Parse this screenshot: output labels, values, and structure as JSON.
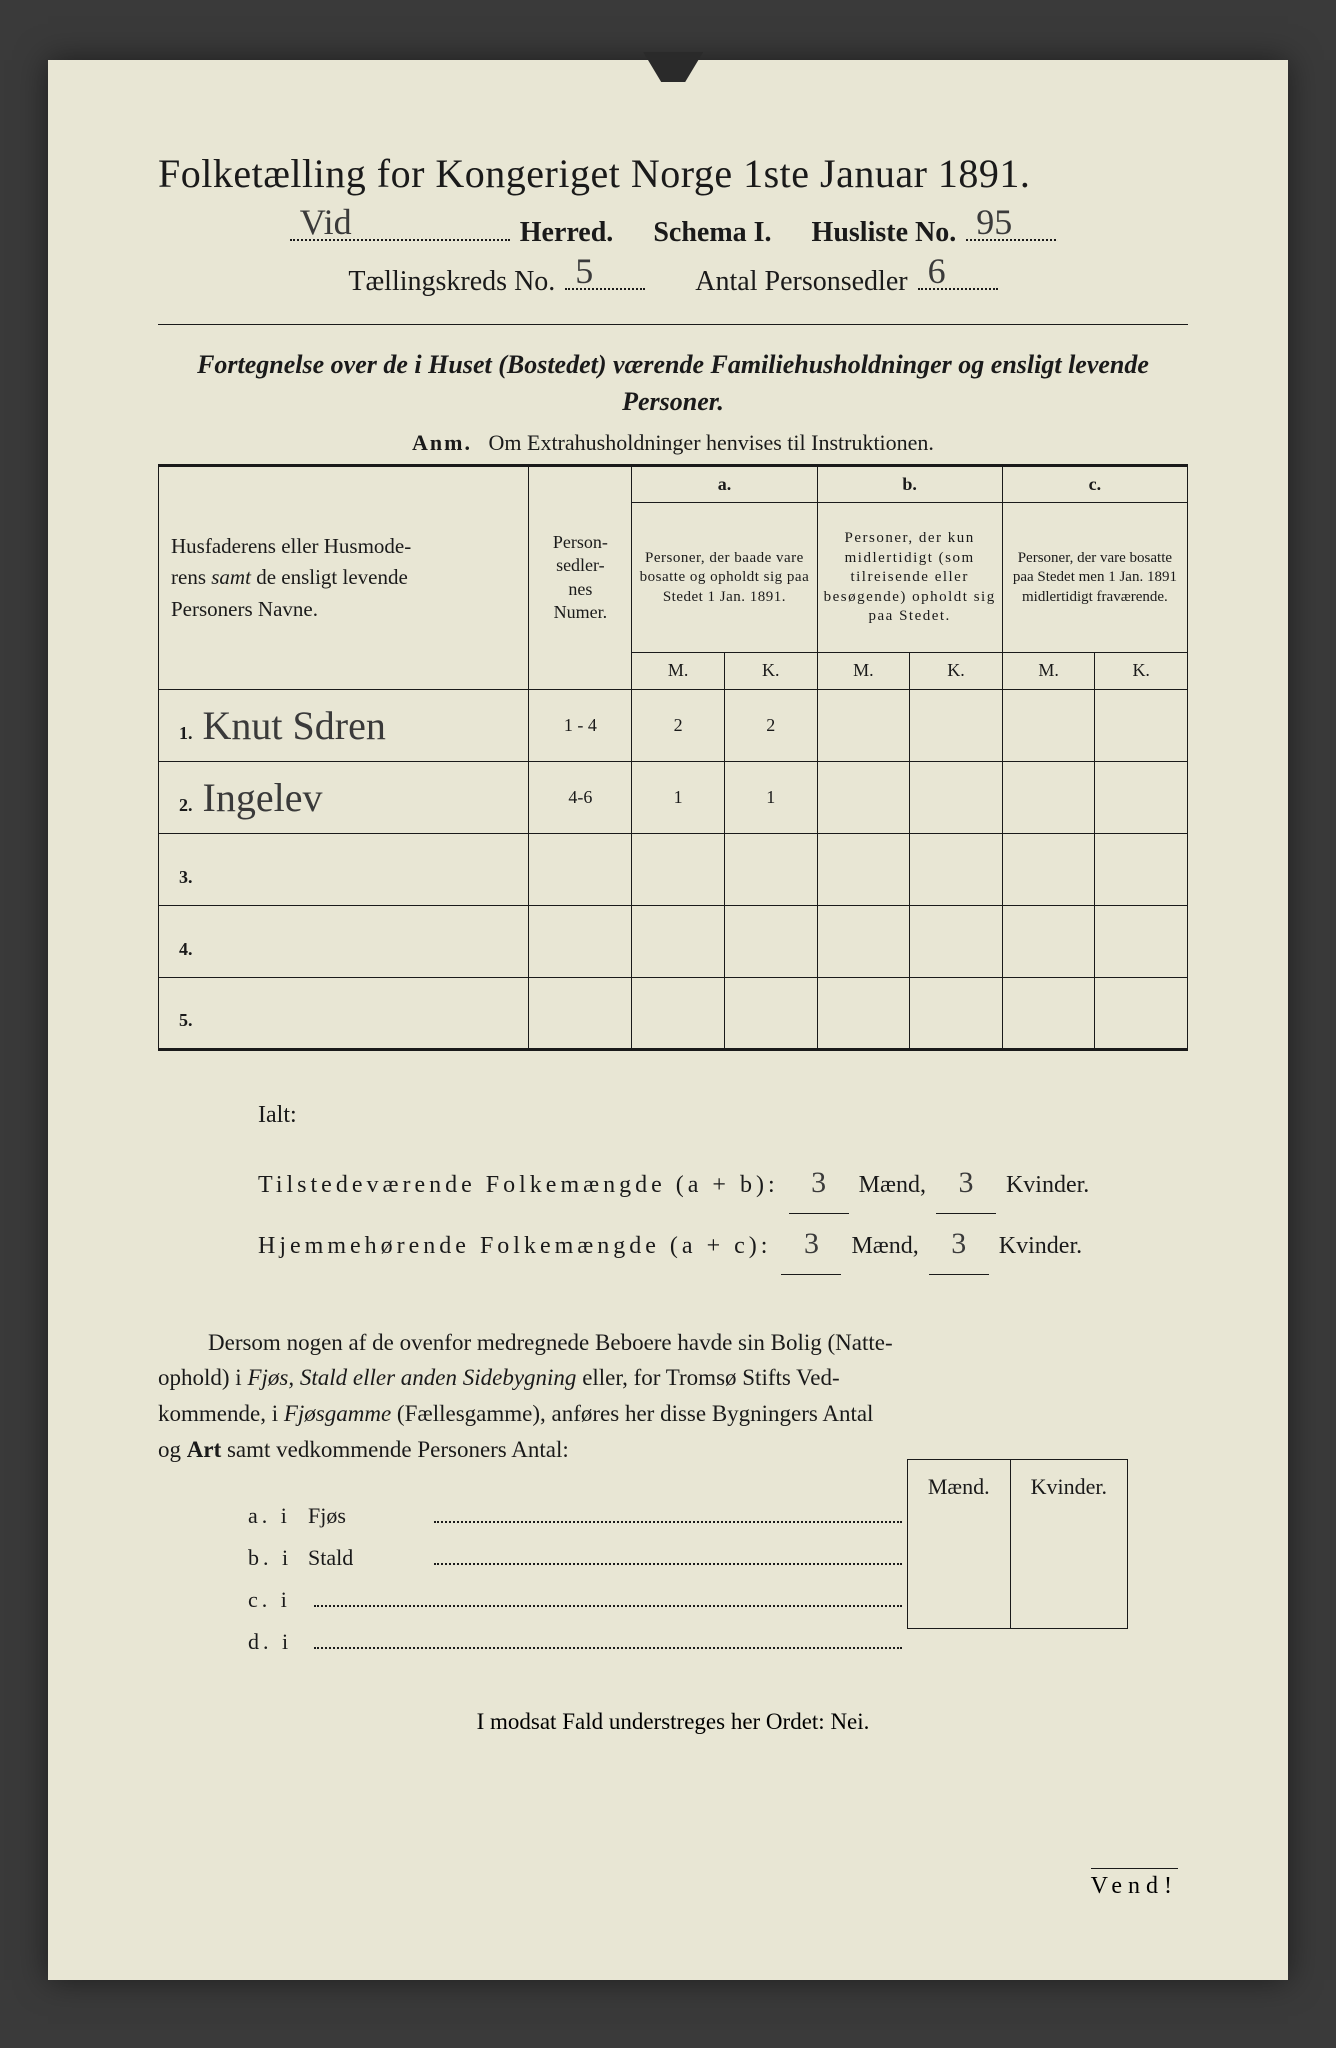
{
  "title": "Folketælling for Kongeriget Norge 1ste Januar 1891.",
  "header": {
    "herred_hand": "Vid",
    "herred_label": "Herred.",
    "schema_label": "Schema I.",
    "husliste_label": "Husliste No.",
    "husliste_hand": "95",
    "kreds_label": "Tællingskreds No.",
    "kreds_hand": "5",
    "antal_label": "Antal Personsedler",
    "antal_hand": "6"
  },
  "subtitle": "Fortegnelse over de i Huset (Bostedet) værende Familiehusholdninger og ensligt levende Personer.",
  "anm_label": "Anm.",
  "anm_text": "Om Extrahusholdninger henvises til Instruktionen.",
  "table": {
    "col1": "Husfaderens eller Husmoderens samt de ensligt levende Personers Navne.",
    "col2": "Person-\nsedler-\nnes\nNumer.",
    "a_label": "a.",
    "a_text": "Personer, der baade vare bosatte og opholdt sig paa Stedet 1 Jan. 1891.",
    "b_label": "b.",
    "b_text": "Personer, der kun midlertidigt (som tilreisende eller besøgende) opholdt sig paa Stedet.",
    "c_label": "c.",
    "c_text": "Personer, der vare bosatte paa Stedet men 1 Jan. 1891 midlertidigt fraværende.",
    "m": "M.",
    "k": "K.",
    "rows": [
      {
        "n": "1.",
        "name": "Knut Sdren",
        "num": "1 - 4",
        "am": "2",
        "ak": "2",
        "bm": "",
        "bk": "",
        "cm": "",
        "ck": ""
      },
      {
        "n": "2.",
        "name": "Ingelev",
        "num": "4-6",
        "am": "1",
        "ak": "1",
        "bm": "",
        "bk": "",
        "cm": "",
        "ck": ""
      },
      {
        "n": "3.",
        "name": "",
        "num": "",
        "am": "",
        "ak": "",
        "bm": "",
        "bk": "",
        "cm": "",
        "ck": ""
      },
      {
        "n": "4.",
        "name": "",
        "num": "",
        "am": "",
        "ak": "",
        "bm": "",
        "bk": "",
        "cm": "",
        "ck": ""
      },
      {
        "n": "5.",
        "name": "",
        "num": "",
        "am": "",
        "ak": "",
        "bm": "",
        "bk": "",
        "cm": "",
        "ck": ""
      }
    ]
  },
  "totals": {
    "ialt": "Ialt:",
    "line1_a": "Tilstedeværende Folkemængde (a + b):",
    "line2_a": "Hjemmehørende Folkemængde (a + c):",
    "maend": "Mænd,",
    "kvinder": "Kvinder.",
    "v1m": "3",
    "v1k": "3",
    "v2m": "3",
    "v2k": "3"
  },
  "body_para": "Dersom nogen af de ovenfor medregnede Beboere havde sin Bolig (Natteophold) i Fjøs, Stald eller anden Sidebygning eller, for Tromsø Stifts Vedkommende, i Fjøsgamme (Fællesgamme), anføres her disse Bygningers Antal og Art samt vedkommende Personers Antal:",
  "abcd": {
    "a": "a.  i",
    "a_txt": "Fjøs",
    "b": "b.  i",
    "b_txt": "Stald",
    "c": "c.  i",
    "c_txt": "",
    "d": "d.  i",
    "d_txt": "",
    "maend": "Mænd.",
    "kvinder": "Kvinder."
  },
  "final": "I modsat Fald understreges her Ordet: Nei.",
  "vend": "Vend!",
  "colors": {
    "paper": "#e8e6d4",
    "ink": "#1a1a1a",
    "handwriting": "#3a3a3a",
    "background": "#3a3a3a"
  }
}
